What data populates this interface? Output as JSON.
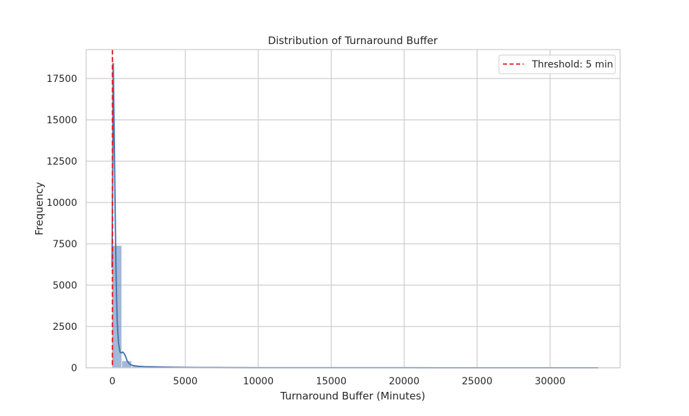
{
  "chart_data": {
    "type": "bar",
    "title": "Distribution of Turnaround Buffer",
    "xlabel": "Turnaround Buffer (Minutes)",
    "ylabel": "Frequency",
    "xlim": [
      -1800,
      34800
    ],
    "ylim": [
      0,
      19250
    ],
    "xticks": [
      0,
      5000,
      10000,
      15000,
      20000,
      25000,
      30000
    ],
    "yticks": [
      0,
      2500,
      5000,
      7500,
      10000,
      12500,
      15000,
      17500
    ],
    "grid": true,
    "legend": {
      "position": "top-right",
      "entries": [
        {
          "label": "Threshold: 5 min",
          "style": "dashed",
          "color": "#e41a1c"
        }
      ]
    },
    "histogram": {
      "bin_width": 670,
      "bins": [
        {
          "x0": -25,
          "x1": 645,
          "count": 7400
        },
        {
          "x0": 645,
          "x1": 1315,
          "count": 420
        },
        {
          "x0": 1315,
          "x1": 1985,
          "count": 90
        },
        {
          "x0": 1985,
          "x1": 2655,
          "count": 45
        },
        {
          "x0": 2655,
          "x1": 3325,
          "count": 25
        },
        {
          "x0": 3325,
          "x1": 3995,
          "count": 60
        },
        {
          "x0": 3995,
          "x1": 4665,
          "count": 15
        },
        {
          "x0": 4665,
          "x1": 5335,
          "count": 10
        },
        {
          "x0": 6675,
          "x1": 7345,
          "count": 35
        },
        {
          "x0": 10000,
          "x1": 10670,
          "count": 5
        },
        {
          "x0": 33000,
          "x1": 33670,
          "count": 8
        }
      ],
      "color": "#4c72b0"
    },
    "kde": {
      "x": [
        -25,
        30,
        60,
        100,
        150,
        200,
        260,
        330,
        420,
        520,
        620,
        700,
        800,
        900,
        1000,
        1100,
        1250,
        1500,
        1800,
        2200,
        2800,
        3500,
        4200,
        5000,
        6000,
        7000,
        8000,
        10000,
        15000,
        20000,
        25000,
        30000,
        33300
      ],
      "y": [
        6050,
        13000,
        18400,
        15800,
        12500,
        8800,
        5300,
        2800,
        1500,
        950,
        900,
        950,
        870,
        700,
        450,
        300,
        180,
        120,
        90,
        70,
        55,
        40,
        30,
        22,
        18,
        15,
        10,
        6,
        4,
        3,
        2,
        2,
        2
      ],
      "color": "#4c72b0"
    },
    "threshold": {
      "value": 5,
      "label": "Threshold: 5 min",
      "color": "#e41a1c"
    }
  }
}
